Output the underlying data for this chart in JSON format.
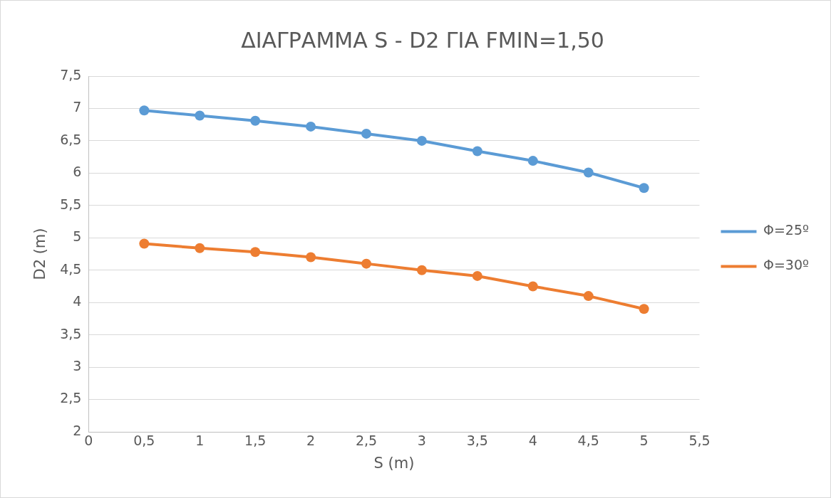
{
  "chart_data": {
    "type": "line",
    "title": "ΔΙΑΓΡΑΜΜΑ S - D2 ΓΙΑ FMIN=1,50",
    "xlabel": "S (m)",
    "ylabel": "D2 (m)",
    "x": [
      0.5,
      1,
      1.5,
      2,
      2.5,
      3,
      3.5,
      4,
      4.5,
      5
    ],
    "series": [
      {
        "name": "Φ=25º",
        "color": "#5b9bd5",
        "values": [
          6.97,
          6.89,
          6.81,
          6.72,
          6.61,
          6.5,
          6.34,
          6.19,
          6.01,
          5.77
        ]
      },
      {
        "name": "Φ=30º",
        "color": "#ed7d31",
        "values": [
          4.91,
          4.84,
          4.78,
          4.7,
          4.6,
          4.5,
          4.41,
          4.25,
          4.1,
          3.9
        ]
      }
    ],
    "xlim": [
      0,
      5.5
    ],
    "xticks": [
      0,
      {
        "value": 0.5,
        "label": "0,5"
      },
      1,
      {
        "value": 1.5,
        "label": "1,5"
      },
      2,
      {
        "value": 2.5,
        "label": "2,5"
      },
      3,
      {
        "value": 3.5,
        "label": "3,5"
      },
      4,
      {
        "value": 4.5,
        "label": "4,5"
      },
      5,
      {
        "value": 5.5,
        "label": "5,5"
      }
    ],
    "ylim": [
      2,
      7.5
    ],
    "yticks": [
      2,
      {
        "value": 2.5,
        "label": "2,5"
      },
      3,
      {
        "value": 3.5,
        "label": "3,5"
      },
      4,
      {
        "value": 4.5,
        "label": "4,5"
      },
      5,
      {
        "value": 5.5,
        "label": "5,5"
      },
      6,
      {
        "value": 6.5,
        "label": "6,5"
      },
      7,
      {
        "value": 7.5,
        "label": "7,5"
      }
    ],
    "grid": "y",
    "legend": "right",
    "marker": "circle",
    "line_style": "solid"
  }
}
